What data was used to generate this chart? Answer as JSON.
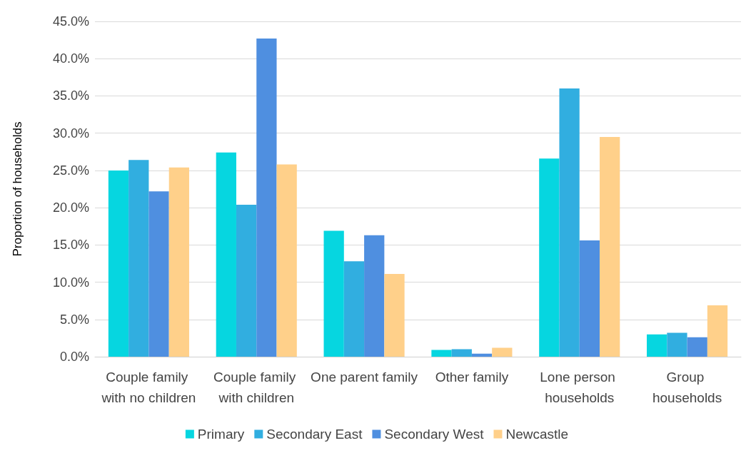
{
  "chart_data": {
    "type": "bar",
    "ylabel": "Proportion of households",
    "categories": [
      "Couple family with no children",
      "Couple family with children",
      "One parent family",
      "Other family",
      "Lone person households",
      "Group households"
    ],
    "series": [
      {
        "name": "Primary",
        "color": "#06d6e0",
        "values": [
          25.0,
          27.4,
          16.9,
          0.9,
          26.6,
          3.0
        ]
      },
      {
        "name": "Secondary East",
        "color": "#31aee0",
        "values": [
          26.4,
          20.4,
          12.8,
          1.0,
          36.0,
          3.2
        ]
      },
      {
        "name": "Secondary West",
        "color": "#4f8fe0",
        "values": [
          22.2,
          42.7,
          16.3,
          0.4,
          15.6,
          2.6
        ]
      },
      {
        "name": "Newcastle",
        "color": "#ffd08a",
        "values": [
          25.4,
          25.8,
          11.1,
          1.2,
          29.5,
          6.9
        ]
      }
    ],
    "ylim": [
      0,
      45
    ],
    "yticks": [
      {
        "value": 0,
        "label": "0.0%"
      },
      {
        "value": 5,
        "label": "5.0%"
      },
      {
        "value": 10,
        "label": "10.0%"
      },
      {
        "value": 15,
        "label": "15.0%"
      },
      {
        "value": 20,
        "label": "20.0%"
      },
      {
        "value": 25,
        "label": "25.0%"
      },
      {
        "value": 30,
        "label": "30.0%"
      },
      {
        "value": 35,
        "label": "35.0%"
      },
      {
        "value": 40,
        "label": "40.0%"
      },
      {
        "value": 45,
        "label": "45.0%"
      }
    ],
    "grid": "y",
    "legend": "bottom"
  }
}
